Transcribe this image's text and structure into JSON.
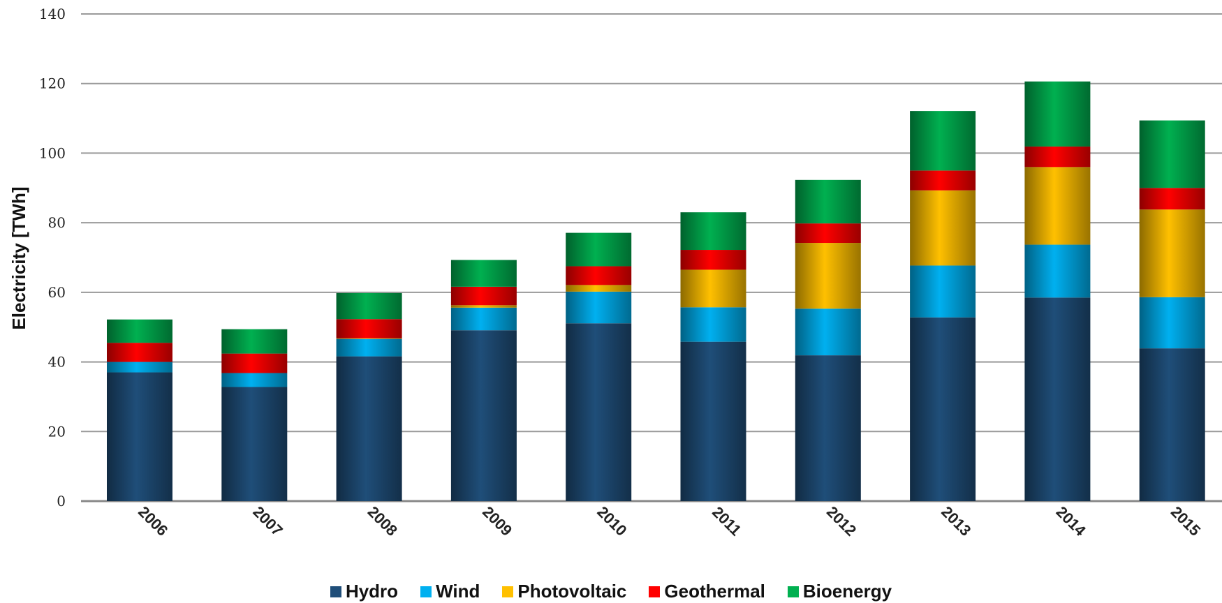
{
  "chart_data": {
    "type": "bar",
    "stacked": true,
    "ylabel": "Electricity [TWh]",
    "xlabel": "",
    "ylim": [
      0,
      140
    ],
    "yticks": [
      0,
      20,
      40,
      60,
      80,
      100,
      120,
      140
    ],
    "grid": true,
    "legend_position": "bottom",
    "categories": [
      "2006",
      "2007",
      "2008",
      "2009",
      "2010",
      "2011",
      "2012",
      "2013",
      "2014",
      "2015"
    ],
    "series": [
      {
        "name": "Hydro",
        "color": "#1F4E79",
        "values": [
          37.0,
          32.8,
          41.6,
          49.1,
          51.1,
          45.8,
          41.9,
          52.8,
          58.5,
          43.9
        ]
      },
      {
        "name": "Wind",
        "color": "#00B0F0",
        "values": [
          3.0,
          4.0,
          5.0,
          6.5,
          9.1,
          9.9,
          13.4,
          14.9,
          15.2,
          14.7
        ]
      },
      {
        "name": "Photovoltaic",
        "color": "#FFC000",
        "values": [
          0.0,
          0.0,
          0.2,
          0.7,
          1.9,
          10.8,
          18.9,
          21.6,
          22.3,
          25.2
        ]
      },
      {
        "name": "Geothermal",
        "color": "#FF0000",
        "values": [
          5.5,
          5.6,
          5.5,
          5.3,
          5.4,
          5.7,
          5.6,
          5.7,
          5.9,
          6.2
        ]
      },
      {
        "name": "Bioenergy",
        "color": "#00B050",
        "values": [
          6.7,
          7.0,
          7.5,
          7.7,
          9.6,
          10.8,
          12.5,
          17.1,
          18.7,
          19.4
        ]
      }
    ]
  }
}
